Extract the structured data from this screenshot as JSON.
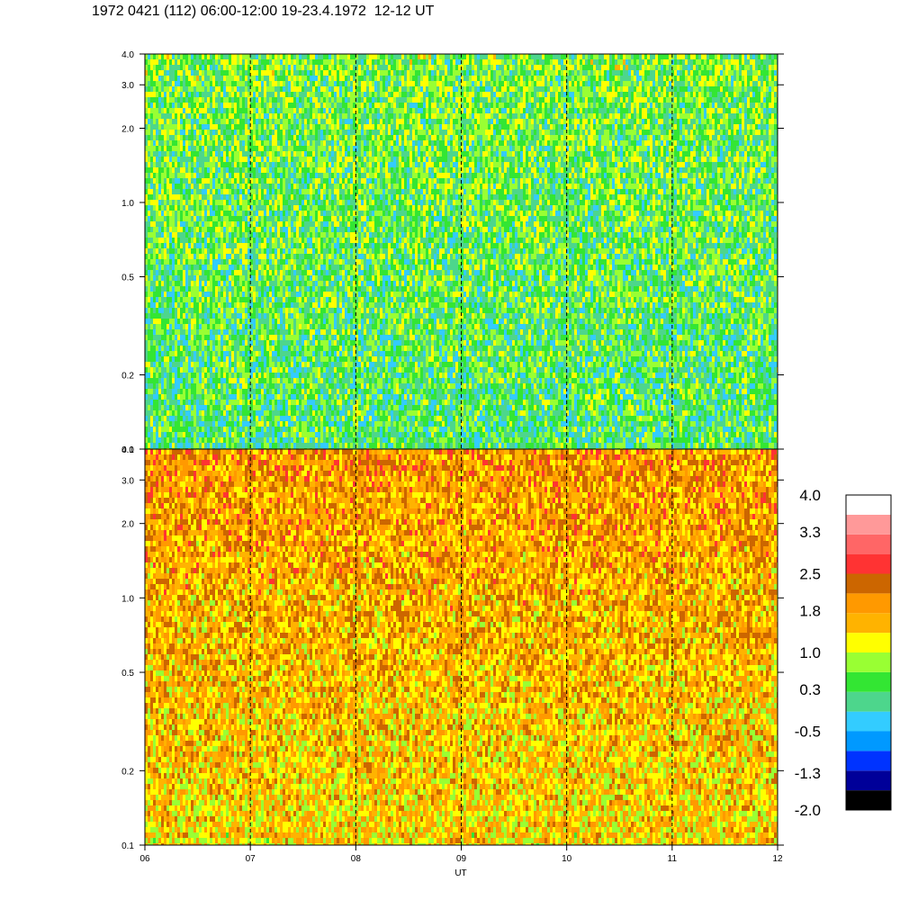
{
  "title": "1972 0421 (112) 06:00-12:00 19-23.4.1972  12-12 UT",
  "chart_data": {
    "type": "heatmap",
    "title": "1972 0421 (112) 06:00-12:00 19-23.4.1972  12-12 UT",
    "xlabel": "UT",
    "x_ticks": [
      "06",
      "07",
      "08",
      "09",
      "10",
      "11",
      "12"
    ],
    "xlim": [
      6,
      12
    ],
    "vertical_dashed_lines_at": [
      7,
      8,
      9,
      10,
      11
    ],
    "panels": [
      {
        "name": "top",
        "y_scale": "log",
        "ylim": [
          0.1,
          4.0
        ],
        "y_ticks": [
          "0.1",
          "0.2",
          "0.5",
          "1.0",
          "2.0",
          "3.0",
          "4.0"
        ],
        "dominant_level": 0.3,
        "description_levels": {
          "low_freq": 0.3,
          "high_freq": 0.6
        }
      },
      {
        "name": "bottom",
        "y_scale": "log",
        "ylim": [
          0.1,
          4.0
        ],
        "y_ticks": [
          "0.1",
          "0.2",
          "0.5",
          "1.0",
          "2.0",
          "3.0",
          "4.0"
        ],
        "dominant_level": 1.8,
        "description_levels": {
          "low_freq": 1.4,
          "high_freq": 1.9
        }
      }
    ],
    "colorbar": {
      "labels": [
        "4.0",
        "3.3",
        "2.5",
        "1.8",
        "1.0",
        "0.3",
        "-0.5",
        "-1.3",
        "-2.0"
      ],
      "range": [
        -2.0,
        4.0
      ],
      "colors": [
        "#000000",
        "#000099",
        "#0033ff",
        "#0099ff",
        "#33ccff",
        "#4dd68c",
        "#33e633",
        "#99ff33",
        "#ffff00",
        "#ffb300",
        "#ff9900",
        "#cc6600",
        "#ff3333",
        "#ff6666",
        "#ff9999",
        "#ffffff"
      ]
    }
  }
}
